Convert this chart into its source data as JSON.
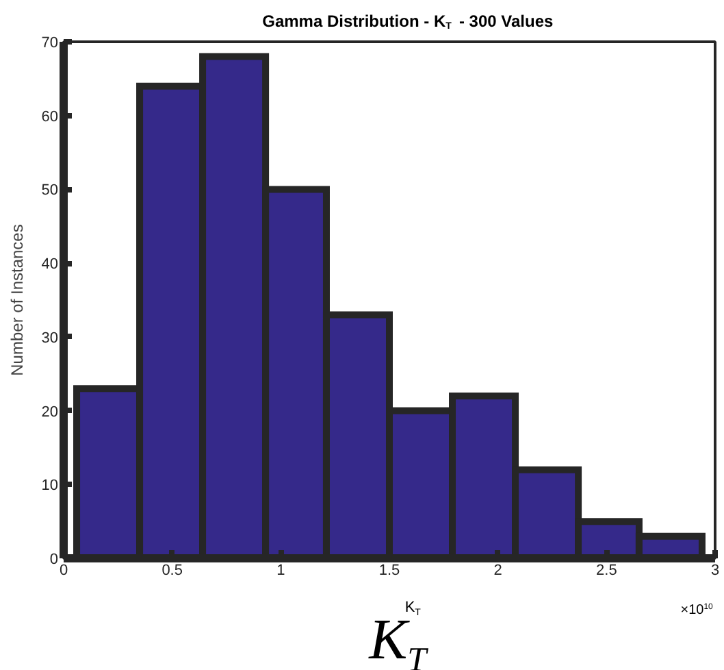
{
  "chart_data": {
    "type": "histogram",
    "title": "Gamma Distribution - K$_{T}$ - 300 Values",
    "xlabel": "K$_{T}$",
    "ylabel": "Number of Instances",
    "bins": [
      0.06,
      0.35,
      0.64,
      0.93,
      1.21,
      1.5,
      1.79,
      2.08,
      2.37,
      2.65,
      2.94
    ],
    "values": [
      23,
      64,
      68,
      50,
      33,
      20,
      22,
      12,
      5,
      3
    ],
    "color": "#35298a",
    "xlim": [
      0,
      3
    ],
    "xticks": [
      0,
      0.5,
      1,
      1.5,
      2,
      2.5,
      3
    ],
    "ylim": [
      0,
      70
    ],
    "yticks": [
      0,
      10,
      20,
      30,
      40,
      50,
      60,
      70
    ],
    "grid": false,
    "annotations": [
      "K$_{T}$",
      "×10$^{10}$"
    ]
  }
}
